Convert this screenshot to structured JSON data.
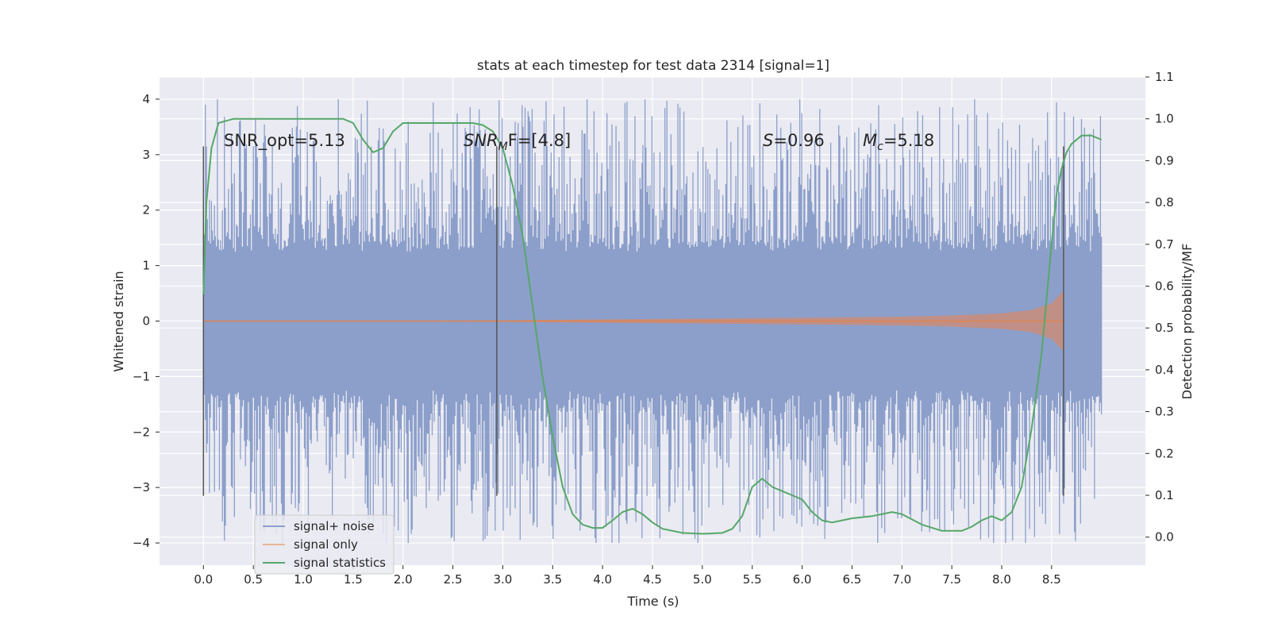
{
  "chart_data": {
    "type": "line",
    "title": "stats at each timestep for test data 2314 [signal=1]",
    "xlabel": "Time (s)",
    "ylabel": "Whitened strain",
    "y2label": "Detection probability/MF",
    "xlim": [
      -0.44,
      9.44
    ],
    "ylim": [
      -4.4,
      4.4
    ],
    "y2lim": [
      -0.067,
      1.1
    ],
    "xticks": [
      0.0,
      0.5,
      1.0,
      1.5,
      2.0,
      2.5,
      3.0,
      3.5,
      4.0,
      4.5,
      5.0,
      5.5,
      6.0,
      6.5,
      7.0,
      7.5,
      8.0,
      8.5
    ],
    "xtick_labels": [
      "0.0",
      "0.5",
      "1.0",
      "1.5",
      "2.0",
      "2.5",
      "3.0",
      "3.5",
      "4.0",
      "4.5",
      "5.0",
      "5.5",
      "6.0",
      "6.5",
      "7.0",
      "7.5",
      "8.0",
      "8.5"
    ],
    "yticks": [
      -4,
      -3,
      -2,
      -1,
      0,
      1,
      2,
      3,
      4
    ],
    "ytick_labels": [
      "−4",
      "−3",
      "−2",
      "−1",
      "0",
      "1",
      "2",
      "3",
      "4"
    ],
    "y2ticks": [
      0.0,
      0.1,
      0.2,
      0.3,
      0.4,
      0.5,
      0.6,
      0.7,
      0.8,
      0.9,
      1.0,
      1.1
    ],
    "y2tick_labels": [
      "0.0",
      "0.1",
      "0.2",
      "0.3",
      "0.4",
      "0.5",
      "0.6",
      "0.7",
      "0.8",
      "0.9",
      "1.0",
      "1.1"
    ],
    "grid": true,
    "legend_position": "lower-left",
    "series": [
      {
        "name": "signal+ noise",
        "color": "#8c9fca",
        "x_range": [
          0.0,
          9.0
        ],
        "core_amplitude": 1.25,
        "peak_amplitude": 4.0,
        "description_key": "noisy whitened strain"
      },
      {
        "name": "signal only",
        "color": "#dd8452",
        "x": [
          0.0,
          1.0,
          2.0,
          3.0,
          4.0,
          5.0,
          6.0,
          7.0,
          7.5,
          8.0,
          8.3,
          8.5,
          8.62
        ],
        "envelope": [
          0.0,
          0.0,
          0.005,
          0.015,
          0.03,
          0.045,
          0.06,
          0.08,
          0.1,
          0.14,
          0.2,
          0.32,
          0.55
        ]
      },
      {
        "name": "signal statistics",
        "color": "#55a868",
        "axis": "right",
        "x": [
          0.0,
          0.03,
          0.08,
          0.15,
          0.3,
          0.5,
          0.8,
          1.1,
          1.3,
          1.4,
          1.5,
          1.6,
          1.7,
          1.8,
          1.9,
          2.0,
          2.2,
          2.5,
          2.7,
          2.8,
          2.9,
          3.0,
          3.1,
          3.2,
          3.3,
          3.4,
          3.5,
          3.6,
          3.7,
          3.8,
          3.9,
          4.0,
          4.1,
          4.2,
          4.3,
          4.4,
          4.5,
          4.6,
          4.8,
          5.0,
          5.2,
          5.3,
          5.4,
          5.5,
          5.6,
          5.7,
          5.8,
          5.9,
          6.0,
          6.1,
          6.2,
          6.3,
          6.4,
          6.5,
          6.7,
          6.9,
          7.0,
          7.2,
          7.4,
          7.6,
          7.7,
          7.8,
          7.9,
          8.0,
          8.1,
          8.2,
          8.3,
          8.4,
          8.5,
          8.55,
          8.6,
          8.65,
          8.7,
          8.8,
          8.9,
          9.0
        ],
        "y": [
          0.58,
          0.8,
          0.93,
          0.99,
          1.0,
          1.0,
          1.0,
          1.0,
          1.0,
          1.0,
          0.99,
          0.95,
          0.92,
          0.93,
          0.97,
          0.99,
          0.99,
          0.99,
          0.99,
          0.985,
          0.97,
          0.93,
          0.84,
          0.72,
          0.55,
          0.38,
          0.24,
          0.12,
          0.055,
          0.03,
          0.022,
          0.022,
          0.04,
          0.06,
          0.068,
          0.055,
          0.035,
          0.02,
          0.01,
          0.008,
          0.01,
          0.02,
          0.05,
          0.12,
          0.14,
          0.12,
          0.11,
          0.1,
          0.09,
          0.06,
          0.04,
          0.035,
          0.04,
          0.045,
          0.05,
          0.06,
          0.055,
          0.03,
          0.015,
          0.015,
          0.025,
          0.04,
          0.05,
          0.04,
          0.06,
          0.12,
          0.26,
          0.44,
          0.7,
          0.82,
          0.88,
          0.92,
          0.94,
          0.96,
          0.96,
          0.95
        ]
      }
    ],
    "vlines": [
      {
        "x": 0.0,
        "ymin": -3.15,
        "ymax": 3.15
      },
      {
        "x": 2.94,
        "ymin": -3.15,
        "ymax": 3.15
      },
      {
        "x": 8.62,
        "ymin": -3.15,
        "ymax": 3.15
      }
    ],
    "annotations": [
      {
        "name": "snr-opt",
        "x": 0.2,
        "y": 3.2,
        "text": "SNR_opt=5.13"
      },
      {
        "name": "snr-mf",
        "x": 2.6,
        "y": 3.2,
        "text": "SNR_MF=[4.8]"
      },
      {
        "name": "s-value",
        "x": 5.6,
        "y": 3.2,
        "text": "S=0.96"
      },
      {
        "name": "mc-value",
        "x": 6.6,
        "y": 3.2,
        "text": "M_c=5.18"
      }
    ],
    "annotation_parts": {
      "snr_opt": "SNR_opt=5.13",
      "snr_mf_base": "SNR",
      "snr_mf_sub": "M",
      "snr_mf_rest": "F=[4.8]",
      "s_symbol": "S",
      "s_rest": "=0.96",
      "mc_base": "M",
      "mc_sub": "c",
      "mc_rest": "=5.18"
    }
  }
}
